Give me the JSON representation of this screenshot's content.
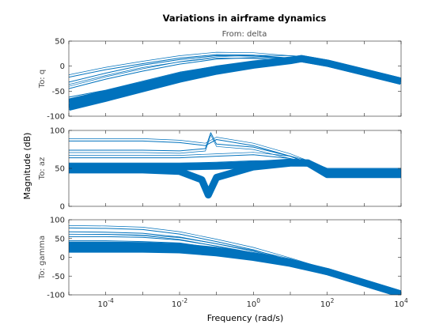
{
  "chart_data": {
    "type": "line",
    "title": "Variations in airframe dynamics",
    "input_label": "From: delta",
    "xlabel": "Frequency  (rad/s)",
    "ylabel": "Magnitude (dB)",
    "xscale": "log",
    "xlim": [
      1e-05,
      10000
    ],
    "x_ticks": [
      {
        "base": "10",
        "exp": "-4",
        "value": 0.0001
      },
      {
        "base": "10",
        "exp": "-2",
        "value": 0.01
      },
      {
        "base": "10",
        "exp": "0",
        "value": 1
      },
      {
        "base": "10",
        "exp": "2",
        "value": 100
      },
      {
        "base": "10",
        "exp": "4",
        "value": 10000
      }
    ],
    "line_color": "#0072bd",
    "legend": "none",
    "grid": false,
    "panels": [
      {
        "output_label": "To: q",
        "ylim": [
          -100,
          50
        ],
        "y_ticks": [
          "50",
          "0",
          "-50",
          "-100"
        ],
        "y_tick_values": [
          50,
          0,
          -50,
          -100
        ],
        "series": [
          {
            "x": [
              1e-05,
              0.0001,
              0.001,
              0.01,
              0.1,
              1,
              10,
              20,
              100,
              1000,
              10000
            ],
            "values": [
              -22,
              -7,
              5,
              16,
              23,
              22,
              16,
              15,
              6,
              -12,
              -30
            ]
          },
          {
            "x": [
              1e-05,
              0.0001,
              0.001,
              0.01,
              0.1,
              1,
              10,
              20,
              100,
              1000,
              10000
            ],
            "values": [
              -32,
              -14,
              2,
              13,
              21,
              20,
              16,
              15,
              6,
              -12,
              -30
            ]
          },
          {
            "x": [
              1e-05,
              0.0001,
              0.001,
              0.01,
              0.1,
              1,
              10,
              20,
              100,
              1000,
              10000
            ],
            "values": [
              -45,
              -26,
              -10,
              4,
              14,
              17,
              16,
              15,
              6,
              -12,
              -30
            ]
          },
          {
            "x": [
              1e-05,
              0.0001,
              0.001,
              0.01,
              0.1,
              1,
              10,
              20,
              100,
              1000,
              10000
            ],
            "values": [
              -62,
              -48,
              -30,
              -12,
              0,
              8,
              13,
              15,
              6,
              -12,
              -30
            ]
          },
          {
            "x": [
              1e-05,
              0.0001,
              0.001,
              0.01,
              0.1,
              1,
              10,
              20,
              100,
              1000,
              10000
            ],
            "values": [
              -72,
              -55,
              -38,
              -20,
              -6,
              4,
              12,
              15,
              6,
              -12,
              -30
            ]
          },
          {
            "x": [
              1e-05,
              0.0001,
              0.001,
              0.01,
              0.1,
              1,
              10,
              20,
              100,
              1000,
              10000
            ],
            "values": [
              -82,
              -64,
              -45,
              -26,
              -10,
              2,
              11,
              15,
              6,
              -12,
              -30
            ]
          }
        ]
      },
      {
        "output_label": "To: az",
        "ylim": [
          0,
          100
        ],
        "y_ticks": [
          "100",
          "50",
          "0"
        ],
        "y_tick_values": [
          100,
          50,
          0
        ],
        "series": [
          {
            "x": [
              1e-05,
              0.001,
              0.01,
              0.05,
              0.1,
              1,
              10,
              30,
              100,
              1000,
              10000
            ],
            "values": [
              86,
              86,
              84,
              80,
              88,
              80,
              66,
              57,
              47,
              47,
              47
            ]
          },
          {
            "x": [
              1e-05,
              0.001,
              0.01,
              0.05,
              0.07,
              0.1,
              1,
              10,
              30,
              100,
              1000,
              10000
            ],
            "values": [
              74,
              74,
              73,
              76,
              97,
              82,
              78,
              66,
              57,
              47,
              47,
              47
            ]
          },
          {
            "x": [
              1e-05,
              0.001,
              0.01,
              0.1,
              1,
              10,
              30,
              100,
              1000,
              10000
            ],
            "values": [
              64,
              64,
              64,
              66,
              68,
              63,
              57,
              47,
              47,
              47
            ]
          },
          {
            "x": [
              1e-05,
              0.001,
              0.01,
              0.1,
              1,
              10,
              30,
              100,
              1000,
              10000
            ],
            "values": [
              57,
              57,
              57,
              58,
              60,
              60,
              57,
              44,
              44,
              44
            ]
          },
          {
            "x": [
              1e-05,
              0.001,
              0.01,
              0.1,
              1,
              10,
              30,
              100,
              1000,
              10000
            ],
            "values": [
              52,
              52,
              52,
              53,
              55,
              58,
              57,
              45,
              45,
              45
            ]
          },
          {
            "x": [
              1e-05,
              0.001,
              0.01,
              0.04,
              0.06,
              0.1,
              1,
              10,
              30,
              100,
              1000,
              10000
            ],
            "values": [
              48,
              48,
              46,
              35,
              15,
              38,
              52,
              57,
              57,
              42,
              42,
              42
            ]
          }
        ]
      },
      {
        "output_label": "To: gamma",
        "ylim": [
          -100,
          100
        ],
        "y_ticks": [
          "100",
          "50",
          "0",
          "-50",
          "-100"
        ],
        "y_tick_values": [
          100,
          50,
          0,
          -50,
          -100
        ],
        "series": [
          {
            "x": [
              1e-05,
              0.0001,
              0.001,
              0.01,
              0.1,
              1,
              10,
              100,
              1000,
              10000
            ],
            "values": [
              78,
              77,
              74,
              62,
              42,
              20,
              -8,
              -38,
              -68,
              -98
            ]
          },
          {
            "x": [
              1e-05,
              0.0001,
              0.001,
              0.01,
              0.1,
              1,
              10,
              100,
              1000,
              10000
            ],
            "values": [
              68,
              67,
              64,
              54,
              36,
              16,
              -8,
              -38,
              -68,
              -98
            ]
          },
          {
            "x": [
              1e-05,
              0.0001,
              0.001,
              0.01,
              0.1,
              1,
              10,
              100,
              1000,
              10000
            ],
            "values": [
              55,
              55,
              53,
              46,
              30,
              12,
              -10,
              -38,
              -68,
              -98
            ]
          },
          {
            "x": [
              1e-05,
              0.0001,
              0.001,
              0.01,
              0.1,
              1,
              10,
              100,
              1000,
              10000
            ],
            "values": [
              44,
              44,
              42,
              38,
              24,
              8,
              -12,
              -38,
              -68,
              -98
            ]
          },
          {
            "x": [
              1e-05,
              0.0001,
              0.001,
              0.01,
              0.1,
              1,
              10,
              100,
              1000,
              10000
            ],
            "values": [
              32,
              32,
              31,
              28,
              18,
              4,
              -14,
              -38,
              -68,
              -98
            ]
          },
          {
            "x": [
              1e-05,
              0.0001,
              0.001,
              0.01,
              0.1,
              1,
              10,
              100,
              1000,
              10000
            ],
            "values": [
              22,
              22,
              22,
              20,
              12,
              0,
              -16,
              -38,
              -68,
              -98
            ]
          }
        ]
      }
    ]
  }
}
